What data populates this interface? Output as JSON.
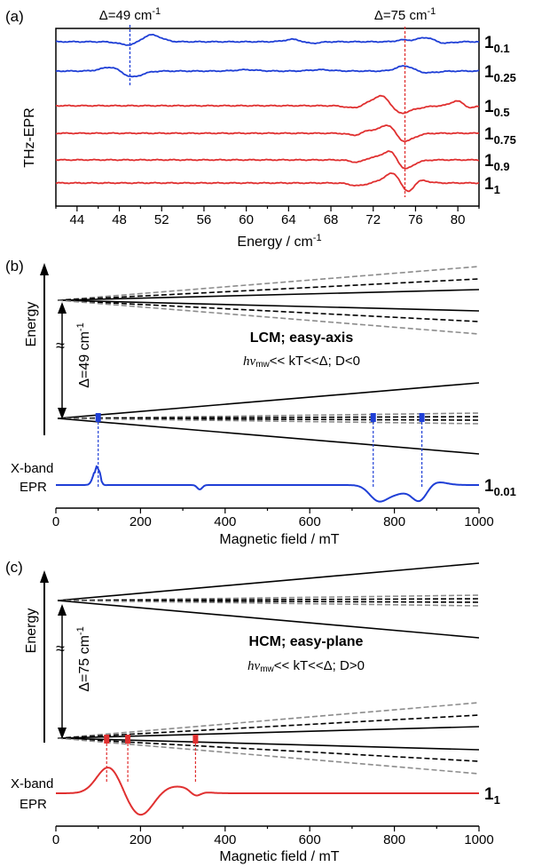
{
  "chart_data": [
    {
      "panel": "(a)",
      "type": "line",
      "ylabel": "THz-EPR",
      "xlabel": "Energy / cm",
      "xlabel_sup": "-1",
      "xlim": [
        42,
        82
      ],
      "xticks": [
        44,
        48,
        52,
        56,
        60,
        64,
        68,
        72,
        76,
        80
      ],
      "annotations": [
        {
          "text": "Δ=49 cm",
          "sup": "-1",
          "x": 49,
          "color": "#1f3fd6"
        },
        {
          "text": "Δ=75 cm",
          "sup": "-1",
          "x": 75,
          "color": "#e03030"
        }
      ],
      "series": [
        {
          "name": "1",
          "sub": "0.1",
          "color": "#1f3fd6",
          "features": [
            [
              49,
              -4,
              0.9
            ],
            [
              51,
              8,
              0.9
            ],
            [
              64.5,
              3,
              0.8
            ],
            [
              66,
              -2,
              0.8
            ],
            [
              74.8,
              2,
              0.6
            ],
            [
              77,
              5,
              0.8
            ],
            [
              78.5,
              -2,
              0.8
            ]
          ]
        },
        {
          "name": "1",
          "sub": "0.25",
          "color": "#1f3fd6",
          "features": [
            [
              47.5,
              6,
              1.0
            ],
            [
              49,
              -8,
              1.0
            ],
            [
              60,
              1.5,
              1.0
            ],
            [
              67,
              1.5,
              1.0
            ],
            [
              75,
              6,
              0.8
            ],
            [
              77,
              -2,
              1.0
            ]
          ]
        },
        {
          "name": "1",
          "sub": "0.5",
          "color": "#e03030",
          "features": [
            [
              70.3,
              -3,
              0.8
            ],
            [
              71.5,
              3,
              0.8
            ],
            [
              73,
              12,
              0.8
            ],
            [
              74.3,
              -9,
              0.8
            ],
            [
              75.8,
              -3,
              1.0
            ],
            [
              80,
              6,
              0.6
            ],
            [
              81,
              -3,
              0.6
            ]
          ]
        },
        {
          "name": "1",
          "sub": "0.75",
          "color": "#e03030",
          "features": [
            [
              70.5,
              -3,
              0.7
            ],
            [
              71.5,
              4,
              0.7
            ],
            [
              73.5,
              11,
              0.7
            ],
            [
              74.6,
              -8,
              0.7
            ],
            [
              75.5,
              -4,
              0.8
            ]
          ]
        },
        {
          "name": "1",
          "sub": "0.9",
          "color": "#e03030",
          "features": [
            [
              70.6,
              -3,
              0.7
            ],
            [
              71.8,
              3,
              0.7
            ],
            [
              73.7,
              12,
              0.7
            ],
            [
              74.8,
              -11,
              0.7
            ],
            [
              75.8,
              -2,
              0.8
            ]
          ]
        },
        {
          "name": "1",
          "sub": "1",
          "color": "#e03030",
          "features": [
            [
              70.5,
              -3,
              0.7
            ],
            [
              74,
              12,
              0.9
            ],
            [
              75.2,
              -16,
              0.6
            ],
            [
              76.2,
              4,
              0.8
            ]
          ]
        }
      ]
    },
    {
      "panel": "(b)",
      "type": "line",
      "ylabel": "Energy",
      "gap_label": "Δ=49 cm",
      "gap_label_sup": "-1",
      "title": "LCM; easy-axis",
      "condition": {
        "hv": "hv",
        "sub": "mw",
        "rest": "<< kT<<Δ; D<0"
      },
      "trace_label": "X-band",
      "trace_label2": "EPR",
      "xlabel": "Magnetic field / mT",
      "xlim": [
        0,
        1000
      ],
      "xticks": [
        0,
        200,
        400,
        600,
        800,
        1000
      ],
      "transitions_mT": [
        100,
        750,
        865
      ],
      "series": [
        {
          "name": "1",
          "sub": "0.01",
          "color": "#1f3fd6",
          "features": [
            [
              97,
              20,
              8
            ],
            [
              108,
              -3,
              6
            ],
            [
              340,
              -5,
              6
            ],
            [
              760,
              -14,
              20
            ],
            [
              800,
              -10,
              30
            ],
            [
              860,
              -18,
              18
            ],
            [
              895,
              4,
              25
            ]
          ]
        }
      ]
    },
    {
      "panel": "(c)",
      "type": "line",
      "ylabel": "Energy",
      "gap_label": "Δ=75 cm",
      "gap_label_sup": "-1",
      "title": "HCM; easy-plane",
      "condition": {
        "hv": "hv",
        "sub": "mw",
        "rest": "<< kT<<Δ; D>0"
      },
      "trace_label": "X-band",
      "trace_label2": "EPR",
      "xlabel": "Magnetic field / mT",
      "xlim": [
        0,
        1000
      ],
      "xticks": [
        0,
        200,
        400,
        600,
        800,
        1000
      ],
      "transitions_mT": [
        120,
        170,
        330
      ],
      "series": [
        {
          "name": "1",
          "sub": "1",
          "color": "#e03030",
          "features": [
            [
              125,
              30,
              28
            ],
            [
              200,
              -26,
              30
            ],
            [
              280,
              8,
              40
            ],
            [
              330,
              -6,
              12
            ]
          ]
        }
      ]
    }
  ]
}
